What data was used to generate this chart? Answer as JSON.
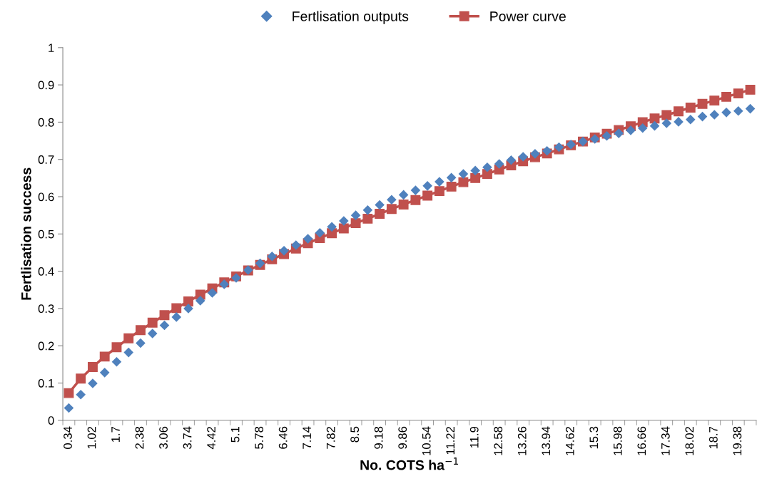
{
  "chart_data": {
    "type": "line",
    "xlabel": "No. COTS ha$^{−1}$",
    "ylabel": "Fertlisation success",
    "categories": [
      "0.34",
      null,
      "1.02",
      null,
      "1.7",
      null,
      "2.38",
      null,
      "3.06",
      null,
      "3.74",
      null,
      "4.42",
      null,
      "5.1",
      null,
      "5.78",
      null,
      "6.46",
      null,
      "7.14",
      null,
      "7.82",
      null,
      "8.5",
      null,
      "9.18",
      null,
      "9.86",
      null,
      "10.54",
      null,
      "11.22",
      null,
      "11.9",
      null,
      "12.58",
      null,
      "13.26",
      null,
      "13.94",
      null,
      "14.62",
      null,
      "15.3",
      null,
      "15.98",
      null,
      "16.66",
      null,
      "17.34",
      null,
      "18.02",
      null,
      "18.7",
      null,
      "19.38",
      null
    ],
    "series": [
      {
        "name": "Fertlisation outputs",
        "type": "scatter",
        "marker": "diamond",
        "color": "#4f81bd",
        "values": [
          0.033,
          0.069,
          0.099,
          0.128,
          0.157,
          0.182,
          0.207,
          0.233,
          0.255,
          0.277,
          0.3,
          0.321,
          0.342,
          0.365,
          0.382,
          0.403,
          0.421,
          0.44,
          0.455,
          0.47,
          0.487,
          0.503,
          0.519,
          0.535,
          0.55,
          0.564,
          0.578,
          0.592,
          0.605,
          0.617,
          0.629,
          0.64,
          0.651,
          0.661,
          0.67,
          0.679,
          0.688,
          0.698,
          0.707,
          0.715,
          0.723,
          0.733,
          0.74,
          0.748,
          0.755,
          0.763,
          0.77,
          0.778,
          0.784,
          0.79,
          0.797,
          0.801,
          0.807,
          0.815,
          0.82,
          0.826,
          0.83,
          0.836
        ]
      },
      {
        "name": "Power curve",
        "marker": "square",
        "color": "#c0504d",
        "values": [
          0.073,
          0.112,
          0.143,
          0.171,
          0.196,
          0.22,
          0.242,
          0.262,
          0.282,
          0.301,
          0.319,
          0.337,
          0.354,
          0.37,
          0.386,
          0.402,
          0.417,
          0.432,
          0.446,
          0.461,
          0.475,
          0.489,
          0.502,
          0.515,
          0.529,
          0.541,
          0.554,
          0.567,
          0.579,
          0.591,
          0.603,
          0.615,
          0.627,
          0.639,
          0.65,
          0.661,
          0.673,
          0.684,
          0.695,
          0.706,
          0.716,
          0.727,
          0.738,
          0.748,
          0.759,
          0.769,
          0.779,
          0.789,
          0.8,
          0.81,
          0.819,
          0.829,
          0.839,
          0.849,
          0.858,
          0.868,
          0.877,
          0.887
        ]
      }
    ],
    "ylim": [
      0,
      1
    ],
    "yticks": [
      0,
      0.1,
      0.2,
      0.3,
      0.4,
      0.5,
      0.6,
      0.7,
      0.8,
      0.9,
      1
    ],
    "grid": false,
    "legend": "top"
  }
}
